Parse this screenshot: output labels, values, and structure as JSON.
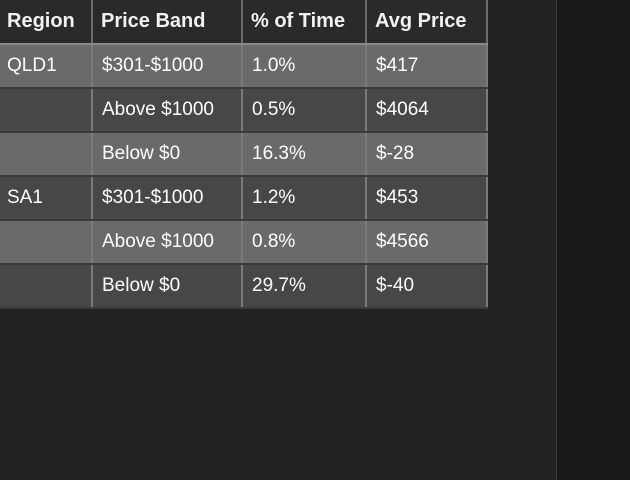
{
  "table": {
    "columns": [
      "Region",
      "Price Band",
      "% of Time",
      "Avg Price"
    ],
    "rows": [
      [
        "QLD1",
        "$301-$1000",
        "1.0%",
        "$417"
      ],
      [
        "",
        "Above $1000",
        "0.5%",
        "$4064"
      ],
      [
        "",
        "Below $0",
        "16.3%",
        "$-28"
      ],
      [
        "SA1",
        "$301-$1000",
        "1.2%",
        "$453"
      ],
      [
        "",
        "Above $1000",
        "0.8%",
        "$4566"
      ],
      [
        "",
        "Below $0",
        "29.7%",
        "$-40"
      ]
    ]
  },
  "colors": {
    "background": "#222222",
    "header_bg": "#2a2a2a",
    "row_light": "#6a6a6a",
    "row_dark": "#474747",
    "text": "#ffffff"
  }
}
